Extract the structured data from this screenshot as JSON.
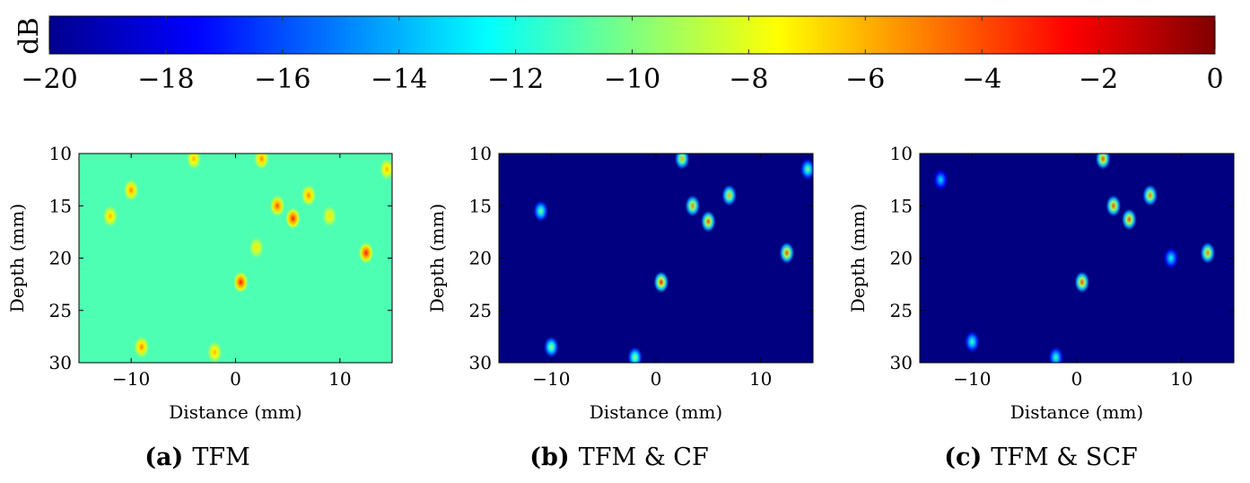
{
  "colorbar": {
    "label": "dB",
    "range": [
      -20,
      0
    ],
    "ticks": [
      "−20",
      "−18",
      "−16",
      "−14",
      "−12",
      "−10",
      "−8",
      "−6",
      "−4",
      "−2",
      "0"
    ],
    "colormap": "jet"
  },
  "chart_data": [
    {
      "type": "heatmap",
      "caption_letter": "(a)",
      "caption_text": "TFM",
      "xlabel": "Distance (mm)",
      "ylabel": "Depth (mm)",
      "xlim": [
        -15,
        15
      ],
      "ylim": [
        30,
        10
      ],
      "xticks": [
        "−10",
        "0",
        "10"
      ],
      "yticks": [
        "10",
        "15",
        "20",
        "25",
        "30"
      ],
      "background_db": -11,
      "blobs": [
        {
          "x": 0.5,
          "y": 22.3,
          "db": -3
        },
        {
          "x": 4,
          "y": 15,
          "db": -4
        },
        {
          "x": 5.5,
          "y": 16.2,
          "db": -3
        },
        {
          "x": 12.5,
          "y": 19.5,
          "db": -3
        },
        {
          "x": 7,
          "y": 14,
          "db": -5
        },
        {
          "x": 2.5,
          "y": 10.5,
          "db": -5
        },
        {
          "x": -10,
          "y": 13.5,
          "db": -5
        },
        {
          "x": -12,
          "y": 16,
          "db": -6
        },
        {
          "x": -9,
          "y": 28.5,
          "db": -5
        },
        {
          "x": -2,
          "y": 29,
          "db": -6
        },
        {
          "x": -4,
          "y": 10.5,
          "db": -6
        },
        {
          "x": 14.5,
          "y": 11.5,
          "db": -6
        },
        {
          "x": 9,
          "y": 16,
          "db": -7
        },
        {
          "x": 2,
          "y": 19,
          "db": -7
        }
      ]
    },
    {
      "type": "heatmap",
      "caption_letter": "(b)",
      "caption_text": "TFM & CF",
      "xlabel": "Distance (mm)",
      "ylabel": "Depth (mm)",
      "xlim": [
        -15,
        15
      ],
      "ylim": [
        30,
        10
      ],
      "xticks": [
        "−10",
        "0",
        "10"
      ],
      "yticks": [
        "10",
        "15",
        "20",
        "25",
        "30"
      ],
      "background_db": -20,
      "blobs": [
        {
          "x": 0.5,
          "y": 22.3,
          "db": -3
        },
        {
          "x": 3.5,
          "y": 15,
          "db": -5
        },
        {
          "x": 5,
          "y": 16.5,
          "db": -4
        },
        {
          "x": 12.5,
          "y": 19.5,
          "db": -4
        },
        {
          "x": 7,
          "y": 14,
          "db": -6
        },
        {
          "x": 2.5,
          "y": 10.5,
          "db": -6
        },
        {
          "x": -10,
          "y": 28.5,
          "db": -9
        },
        {
          "x": -11,
          "y": 15.5,
          "db": -10
        },
        {
          "x": -2,
          "y": 29.5,
          "db": -9
        },
        {
          "x": 14.5,
          "y": 11.5,
          "db": -10
        }
      ]
    },
    {
      "type": "heatmap",
      "caption_letter": "(c)",
      "caption_text": "TFM & SCF",
      "xlabel": "Distance (mm)",
      "ylabel": "Depth (mm)",
      "xlim": [
        -15,
        15
      ],
      "ylim": [
        30,
        10
      ],
      "xticks": [
        "−10",
        "0",
        "10"
      ],
      "yticks": [
        "10",
        "15",
        "20",
        "25",
        "30"
      ],
      "background_db": -20,
      "blobs": [
        {
          "x": 0.5,
          "y": 22.3,
          "db": -4
        },
        {
          "x": 2.5,
          "y": 10.5,
          "db": -4
        },
        {
          "x": 3.5,
          "y": 15,
          "db": -4
        },
        {
          "x": 5,
          "y": 16.3,
          "db": -4
        },
        {
          "x": 7,
          "y": 14,
          "db": -5
        },
        {
          "x": 12.5,
          "y": 19.5,
          "db": -5
        },
        {
          "x": -10,
          "y": 28,
          "db": -11
        },
        {
          "x": -2,
          "y": 29.5,
          "db": -11
        },
        {
          "x": 9,
          "y": 20,
          "db": -12
        },
        {
          "x": -13,
          "y": 12.5,
          "db": -13
        }
      ]
    }
  ]
}
